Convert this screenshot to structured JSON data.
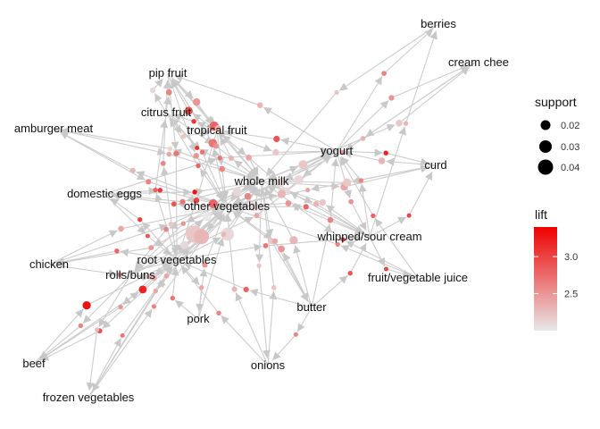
{
  "chart_data": {
    "type": "network",
    "title": "",
    "item_labels": [
      {
        "id": "berries",
        "text": "berries"
      },
      {
        "id": "cream-cheese",
        "text": "cream chee"
      },
      {
        "id": "pip-fruit",
        "text": "pip fruit"
      },
      {
        "id": "hamburger-meat",
        "text": "amburger meat"
      },
      {
        "id": "citrus-fruit",
        "text": "citrus fruit"
      },
      {
        "id": "tropical-fruit",
        "text": "tropical fruit"
      },
      {
        "id": "yogurt",
        "text": "yogurt"
      },
      {
        "id": "curd",
        "text": "curd"
      },
      {
        "id": "whole-milk",
        "text": "whole milk"
      },
      {
        "id": "domestic-eggs",
        "text": "domestic eggs"
      },
      {
        "id": "other-vegetables",
        "text": "other vegetables"
      },
      {
        "id": "whipped-sour-cream",
        "text": "whipped/sour cream"
      },
      {
        "id": "chicken",
        "text": "chicken"
      },
      {
        "id": "root-vegetables",
        "text": "root vegetables"
      },
      {
        "id": "rolls-buns",
        "text": "rolls/buns"
      },
      {
        "id": "fruit-vegetable-juice",
        "text": "fruit/vegetable juice"
      },
      {
        "id": "butter",
        "text": "butter"
      },
      {
        "id": "pork",
        "text": "pork"
      },
      {
        "id": "beef",
        "text": "beef"
      },
      {
        "id": "onions",
        "text": "onions"
      },
      {
        "id": "frozen-vegetables",
        "text": "frozen vegetables"
      }
    ],
    "legend": {
      "size": {
        "title": "support",
        "entries": [
          "0.02",
          "0.03",
          "0.04"
        ],
        "values": [
          0.02,
          0.03,
          0.04
        ]
      },
      "color": {
        "title": "lift",
        "ticks": [
          "3.0",
          "2.5"
        ],
        "tick_values": [
          3.0,
          2.5
        ],
        "range": [
          2.0,
          3.4
        ],
        "low_color": "#e8e8e8",
        "high_color": "#ee0000"
      }
    },
    "rules": [
      {
        "lhs": "citrus-fruit",
        "rhs": "pip-fruit",
        "support": 0.014,
        "lift": 2.6
      },
      {
        "lhs": "tropical-fruit",
        "rhs": "pip-fruit",
        "support": 0.02,
        "lift": 2.9
      },
      {
        "lhs": "whole-milk",
        "rhs": "pip-fruit",
        "support": 0.024,
        "lift": 2.8
      },
      {
        "lhs": "other-vegetables",
        "rhs": "pip-fruit",
        "support": 0.021,
        "lift": 2.7
      },
      {
        "lhs": "pip-fruit",
        "rhs": "tropical-fruit",
        "support": 0.018,
        "lift": 2.5
      },
      {
        "lhs": "yogurt",
        "rhs": "pip-fruit",
        "support": 0.013,
        "lift": 2.3
      },
      {
        "lhs": "citrus-fruit",
        "rhs": "pip-fruit",
        "support": 0.012,
        "lift": 2.1
      },
      {
        "lhs": "root-vegetables",
        "rhs": "pip-fruit",
        "support": 0.011,
        "lift": 2.6
      },
      {
        "lhs": "yogurt",
        "rhs": "berries",
        "support": 0.011,
        "lift": 2.6
      },
      {
        "lhs": "whipped-sour-cream",
        "rhs": "berries",
        "support": 0.01,
        "lift": 2.3
      },
      {
        "lhs": "yogurt",
        "rhs": "cream-cheese",
        "support": 0.012,
        "lift": 2.5
      },
      {
        "lhs": "whole-milk",
        "rhs": "cream-cheese",
        "support": 0.016,
        "lift": 2.2
      },
      {
        "lhs": "other-vegetables",
        "rhs": "citrus-fruit",
        "support": 0.01,
        "lift": 2.8
      },
      {
        "lhs": "whole-milk",
        "rhs": "citrus-fruit",
        "support": 0.009,
        "lift": 3.1
      },
      {
        "lhs": "yogurt",
        "rhs": "tropical-fruit",
        "support": 0.015,
        "lift": 2.9
      },
      {
        "lhs": "whole-milk",
        "rhs": "tropical-fruit",
        "support": 0.012,
        "lift": 2.3
      },
      {
        "lhs": "citrus-fruit",
        "rhs": "tropical-fruit",
        "support": 0.011,
        "lift": 2.2
      },
      {
        "lhs": "whipped-sour-cream",
        "rhs": "tropical-fruit",
        "support": 0.014,
        "lift": 2.1
      },
      {
        "lhs": "other-vegetables",
        "rhs": "hamburger-meat",
        "support": 0.012,
        "lift": 2.3
      },
      {
        "lhs": "whole-milk",
        "rhs": "hamburger-meat",
        "support": 0.011,
        "lift": 2.1
      },
      {
        "lhs": "yogurt",
        "rhs": "curd",
        "support": 0.01,
        "lift": 3.2
      },
      {
        "lhs": "whipped-sour-cream",
        "rhs": "curd",
        "support": 0.009,
        "lift": 3.0
      },
      {
        "lhs": "whole-milk",
        "rhs": "curd",
        "support": 0.018,
        "lift": 2.4
      },
      {
        "lhs": "curd",
        "rhs": "whole-milk",
        "support": 0.02,
        "lift": 2.2
      },
      {
        "lhs": "curd",
        "rhs": "yogurt",
        "support": 0.016,
        "lift": 2.3
      },
      {
        "lhs": "domestic-eggs",
        "rhs": "whole-milk",
        "support": 0.01,
        "lift": 3.3
      },
      {
        "lhs": "domestic-eggs",
        "rhs": "other-vegetables",
        "support": 0.01,
        "lift": 3.1
      },
      {
        "lhs": "whole-milk",
        "rhs": "domestic-eggs",
        "support": 0.012,
        "lift": 2.7
      },
      {
        "lhs": "other-vegetables",
        "rhs": "domestic-eggs",
        "support": 0.011,
        "lift": 2.9
      },
      {
        "lhs": "root-vegetables",
        "rhs": "domestic-eggs",
        "support": 0.01,
        "lift": 3.0
      },
      {
        "lhs": "tropical-fruit",
        "rhs": "whole-milk",
        "support": 0.014,
        "lift": 2.4
      },
      {
        "lhs": "tropical-fruit",
        "rhs": "other-vegetables",
        "support": 0.013,
        "lift": 2.6
      },
      {
        "lhs": "tropical-fruit",
        "rhs": "yogurt",
        "support": 0.015,
        "lift": 2.2
      },
      {
        "lhs": "citrus-fruit",
        "rhs": "whole-milk",
        "support": 0.012,
        "lift": 2.5
      },
      {
        "lhs": "citrus-fruit",
        "rhs": "other-vegetables",
        "support": 0.01,
        "lift": 2.7
      },
      {
        "lhs": "yogurt",
        "rhs": "whole-milk",
        "support": 0.024,
        "lift": 2.1
      },
      {
        "lhs": "whipped-sour-cream",
        "rhs": "whole-milk",
        "support": 0.016,
        "lift": 2.2
      },
      {
        "lhs": "whipped-sour-cream",
        "rhs": "other-vegetables",
        "support": 0.014,
        "lift": 2.5
      },
      {
        "lhs": "whipped-sour-cream",
        "rhs": "yogurt",
        "support": 0.01,
        "lift": 2.6
      },
      {
        "lhs": "yogurt",
        "rhs": "whipped-sour-cream",
        "support": 0.011,
        "lift": 2.5
      },
      {
        "lhs": "other-vegetables",
        "rhs": "whipped-sour-cream",
        "support": 0.012,
        "lift": 2.8
      },
      {
        "lhs": "whole-milk",
        "rhs": "whipped-sour-cream",
        "support": 0.013,
        "lift": 2.3
      },
      {
        "lhs": "root-vegetables",
        "rhs": "whipped-sour-cream",
        "support": 0.011,
        "lift": 2.7
      },
      {
        "lhs": "butter",
        "rhs": "whipped-sour-cream",
        "support": 0.01,
        "lift": 2.9
      },
      {
        "lhs": "root-vegetables",
        "rhs": "whole-milk",
        "support": 0.034,
        "lift": 2.1
      },
      {
        "lhs": "root-vegetables",
        "rhs": "other-vegetables",
        "support": 0.046,
        "lift": 2.2
      },
      {
        "lhs": "other-vegetables",
        "rhs": "root-vegetables",
        "support": 0.04,
        "lift": 2.3
      },
      {
        "lhs": "whole-milk",
        "rhs": "root-vegetables",
        "support": 0.022,
        "lift": 2.8
      },
      {
        "lhs": "yogurt",
        "rhs": "root-vegetables",
        "support": 0.016,
        "lift": 2.6
      },
      {
        "lhs": "tropical-fruit",
        "rhs": "root-vegetables",
        "support": 0.013,
        "lift": 3.0
      },
      {
        "lhs": "rolls-buns",
        "rhs": "root-vegetables",
        "support": 0.012,
        "lift": 2.4
      },
      {
        "lhs": "root-vegetables",
        "rhs": "rolls-buns",
        "support": 0.013,
        "lift": 2.3
      },
      {
        "lhs": "chicken",
        "rhs": "other-vegetables",
        "support": 0.013,
        "lift": 2.4
      },
      {
        "lhs": "chicken",
        "rhs": "whole-milk",
        "support": 0.011,
        "lift": 2.2
      },
      {
        "lhs": "chicken",
        "rhs": "root-vegetables",
        "support": 0.01,
        "lift": 2.6
      },
      {
        "lhs": "root-vegetables",
        "rhs": "chicken",
        "support": 0.01,
        "lift": 2.8
      },
      {
        "lhs": "other-vegetables",
        "rhs": "chicken",
        "support": 0.011,
        "lift": 2.5
      },
      {
        "lhs": "beef",
        "rhs": "root-vegetables",
        "support": 0.02,
        "lift": 3.3
      },
      {
        "lhs": "beef",
        "rhs": "other-vegetables",
        "support": 0.019,
        "lift": 3.2
      },
      {
        "lhs": "root-vegetables",
        "rhs": "beef",
        "support": 0.011,
        "lift": 2.9
      },
      {
        "lhs": "frozen-vegetables",
        "rhs": "whole-milk",
        "support": 0.011,
        "lift": 2.4
      },
      {
        "lhs": "frozen-vegetables",
        "rhs": "other-vegetables",
        "support": 0.01,
        "lift": 2.6
      },
      {
        "lhs": "frozen-vegetables",
        "rhs": "root-vegetables",
        "support": 0.009,
        "lift": 2.7
      },
      {
        "lhs": "pork",
        "rhs": "other-vegetables",
        "support": 0.012,
        "lift": 2.5
      },
      {
        "lhs": "pork",
        "rhs": "whole-milk",
        "support": 0.011,
        "lift": 2.3
      },
      {
        "lhs": "pork",
        "rhs": "root-vegetables",
        "support": 0.01,
        "lift": 2.7
      },
      {
        "lhs": "root-vegetables",
        "rhs": "pork",
        "support": 0.01,
        "lift": 2.4
      },
      {
        "lhs": "onions",
        "rhs": "other-vegetables",
        "support": 0.012,
        "lift": 2.3
      },
      {
        "lhs": "onions",
        "rhs": "root-vegetables",
        "support": 0.01,
        "lift": 2.6
      },
      {
        "lhs": "onions",
        "rhs": "whole-milk",
        "support": 0.011,
        "lift": 2.2
      },
      {
        "lhs": "butter",
        "rhs": "whole-milk",
        "support": 0.02,
        "lift": 2.3
      },
      {
        "lhs": "butter",
        "rhs": "other-vegetables",
        "support": 0.016,
        "lift": 2.5
      },
      {
        "lhs": "butter",
        "rhs": "yogurt",
        "support": 0.013,
        "lift": 2.6
      },
      {
        "lhs": "butter",
        "rhs": "root-vegetables",
        "support": 0.012,
        "lift": 2.8
      },
      {
        "lhs": "whole-milk",
        "rhs": "butter",
        "support": 0.014,
        "lift": 2.2
      },
      {
        "lhs": "other-vegetables",
        "rhs": "butter",
        "support": 0.012,
        "lift": 2.4
      },
      {
        "lhs": "fruit-vegetable-juice",
        "rhs": "whole-milk",
        "support": 0.01,
        "lift": 2.9
      },
      {
        "lhs": "fruit-vegetable-juice",
        "rhs": "other-vegetables",
        "support": 0.01,
        "lift": 2.6
      },
      {
        "lhs": "fruit-vegetable-juice",
        "rhs": "yogurt",
        "support": 0.01,
        "lift": 2.8
      },
      {
        "lhs": "whipped-sour-cream",
        "rhs": "fruit-vegetable-juice",
        "support": 0.009,
        "lift": 3.0
      },
      {
        "lhs": "yogurt",
        "rhs": "other-vegetables",
        "support": 0.023,
        "lift": 2.1
      },
      {
        "lhs": "other-vegetables",
        "rhs": "yogurt",
        "support": 0.02,
        "lift": 2.3
      },
      {
        "lhs": "whole-milk",
        "rhs": "yogurt",
        "support": 0.022,
        "lift": 2.2
      },
      {
        "lhs": "whole-milk",
        "rhs": "other-vegetables",
        "support": 0.022,
        "lift": 2.1
      },
      {
        "lhs": "other-vegetables",
        "rhs": "whole-milk",
        "support": 0.024,
        "lift": 2.1
      },
      {
        "lhs": "rolls-buns",
        "rhs": "whole-milk",
        "support": 0.021,
        "lift": 2.0
      },
      {
        "lhs": "rolls-buns",
        "rhs": "other-vegetables",
        "support": 0.02,
        "lift": 2.1
      },
      {
        "lhs": "rolls-buns",
        "rhs": "yogurt",
        "support": 0.012,
        "lift": 2.4
      },
      {
        "lhs": "other-vegetables",
        "rhs": "rolls-buns",
        "support": 0.011,
        "lift": 2.6
      },
      {
        "lhs": "whole-milk",
        "rhs": "rolls-buns",
        "support": 0.01,
        "lift": 2.5
      },
      {
        "lhs": "domestic-eggs",
        "rhs": "yogurt",
        "support": 0.01,
        "lift": 2.7
      },
      {
        "lhs": "domestic-eggs",
        "rhs": "root-vegetables",
        "support": 0.009,
        "lift": 2.9
      },
      {
        "lhs": "hamburger-meat",
        "rhs": "whole-milk",
        "support": 0.011,
        "lift": 2.4
      },
      {
        "lhs": "hamburger-meat",
        "rhs": "other-vegetables",
        "support": 0.012,
        "lift": 2.6
      },
      {
        "lhs": "pip-fruit",
        "rhs": "whole-milk",
        "support": 0.015,
        "lift": 2.3
      },
      {
        "lhs": "pip-fruit",
        "rhs": "other-vegetables",
        "support": 0.013,
        "lift": 2.5
      },
      {
        "lhs": "pip-fruit",
        "rhs": "root-vegetables",
        "support": 0.012,
        "lift": 2.7
      },
      {
        "lhs": "berries",
        "rhs": "whole-milk",
        "support": 0.01,
        "lift": 2.2
      },
      {
        "lhs": "cream-cheese",
        "rhs": "whole-milk",
        "support": 0.011,
        "lift": 2.3
      },
      {
        "lhs": "cream-cheese",
        "rhs": "other-vegetables",
        "support": 0.01,
        "lift": 2.5
      },
      {
        "lhs": "tropical-fruit",
        "rhs": "citrus-fruit",
        "support": 0.01,
        "lift": 3.1
      },
      {
        "lhs": "root-vegetables",
        "rhs": "citrus-fruit",
        "support": 0.01,
        "lift": 2.8
      },
      {
        "lhs": "curd",
        "rhs": "other-vegetables",
        "support": 0.01,
        "lift": 2.4
      },
      {
        "lhs": "butter",
        "rhs": "onions",
        "support": 0.009,
        "lift": 2.6
      },
      {
        "lhs": "whole-milk",
        "rhs": "onions",
        "support": 0.01,
        "lift": 2.2
      },
      {
        "lhs": "other-vegetables",
        "rhs": "frozen-vegetables",
        "support": 0.01,
        "lift": 2.4
      },
      {
        "lhs": "rolls-buns",
        "rhs": "frozen-vegetables",
        "support": 0.009,
        "lift": 2.3
      },
      {
        "lhs": "rolls-buns",
        "rhs": "beef",
        "support": 0.01,
        "lift": 2.6
      },
      {
        "lhs": "other-vegetables",
        "rhs": "beef",
        "support": 0.01,
        "lift": 2.5
      }
    ]
  }
}
